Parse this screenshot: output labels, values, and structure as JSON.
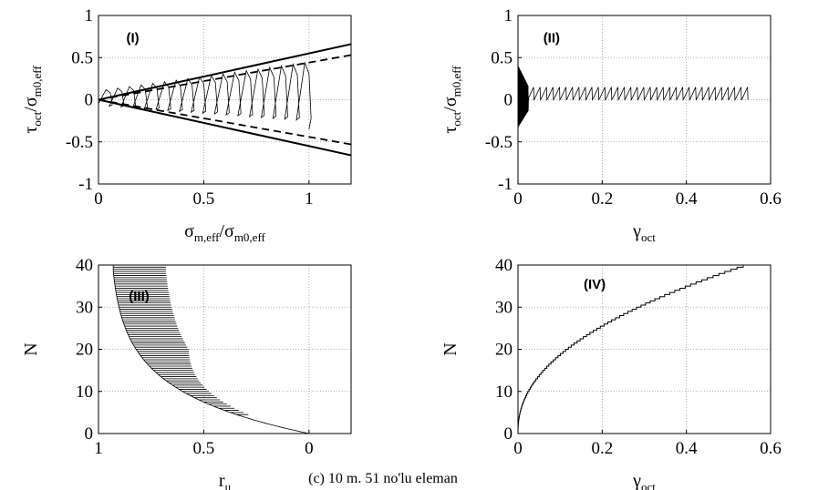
{
  "caption": "(c) 10 m. 51 no'lu eleman",
  "chart_data": [
    {
      "id": "p1",
      "type": "line",
      "tag": "(I)",
      "xlabel": {
        "main": "σ",
        "sub": "m,eff",
        "mid": "/σ",
        "sub2": "m0,eff"
      },
      "ylabel": {
        "main": "τ",
        "sub": "oct",
        "mid": "/σ",
        "sub2": "m0,eff"
      },
      "xlim": [
        0,
        1.2
      ],
      "ylim": [
        -1,
        1
      ],
      "xticks": [
        0,
        0.5,
        1
      ],
      "yticks": [
        -1,
        -0.5,
        0,
        0.5,
        1
      ],
      "grid": true,
      "series": [
        {
          "style": "solid-thick",
          "x": [
            0,
            1.2
          ],
          "y": [
            0,
            0.66
          ]
        },
        {
          "style": "solid-thick",
          "x": [
            0,
            1.2
          ],
          "y": [
            0,
            -0.66
          ]
        },
        {
          "style": "dashed",
          "x": [
            0,
            1.2
          ],
          "y": [
            0,
            0.53
          ]
        },
        {
          "style": "dashed",
          "x": [
            0,
            1.2
          ],
          "y": [
            0,
            -0.53
          ]
        },
        {
          "style": "hysteresis",
          "x": [
            0,
            1.0
          ],
          "y": [
            0,
            0.45
          ]
        }
      ]
    },
    {
      "id": "p2",
      "type": "line",
      "tag": "(II)",
      "xlabel": {
        "main": "γ",
        "sub": "oct"
      },
      "ylabel": {
        "main": "τ",
        "sub": "oct",
        "mid": "/σ",
        "sub2": "m0,eff"
      },
      "xlim": [
        0,
        0.6
      ],
      "ylim": [
        -1,
        1
      ],
      "xticks": [
        0,
        0.2,
        0.4,
        0.6
      ],
      "yticks": [
        -1,
        -0.5,
        0,
        0.5,
        1
      ],
      "grid": true,
      "series": [
        {
          "style": "oscillation",
          "x": [
            0,
            0.55
          ],
          "y": [
            -0.3,
            0.4
          ]
        }
      ]
    },
    {
      "id": "p3",
      "type": "line",
      "tag": "(III)",
      "xlabel": {
        "main": "r",
        "sub": "u"
      },
      "ylabel": {
        "main": "N"
      },
      "xlim": [
        1,
        -0.2
      ],
      "ylim": [
        0,
        40
      ],
      "xticks": [
        1,
        0.5,
        0
      ],
      "yticks": [
        0,
        10,
        20,
        30,
        40
      ],
      "grid": true,
      "series": [
        {
          "style": "ru-envelope",
          "x": [
            0,
            0.92
          ],
          "y": [
            0,
            40
          ]
        }
      ]
    },
    {
      "id": "p4",
      "type": "line",
      "tag": "(IV)",
      "xlabel": {
        "main": "γ",
        "sub": "oct"
      },
      "ylabel": {
        "main": "N"
      },
      "xlim": [
        0,
        0.6
      ],
      "ylim": [
        0,
        40
      ],
      "xticks": [
        0,
        0.2,
        0.4,
        0.6
      ],
      "yticks": [
        0,
        10,
        20,
        30,
        40
      ],
      "grid": true,
      "series": [
        {
          "style": "staircase",
          "x": [
            0,
            0.55
          ],
          "y": [
            0,
            40
          ]
        }
      ]
    }
  ]
}
